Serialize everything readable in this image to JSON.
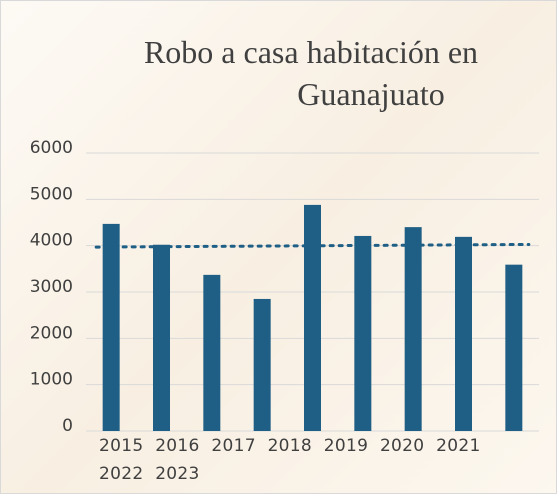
{
  "chart_data": {
    "type": "bar",
    "title": "Robo a casa habitación en Guanajuato",
    "categories": [
      "2015",
      "2016",
      "2017",
      "2018",
      "2019",
      "2020",
      "2021",
      "2022",
      "2023"
    ],
    "values": [
      4470,
      4020,
      3370,
      2850,
      4880,
      4210,
      4400,
      4190,
      3590
    ],
    "color": "#1f5f85",
    "trendline": "linear",
    "trendline_color": "#1f5f85",
    "ylim": [
      0,
      6000
    ],
    "yticks": [
      0,
      1000,
      2000,
      3000,
      4000,
      5000,
      6000
    ],
    "grid": true
  }
}
